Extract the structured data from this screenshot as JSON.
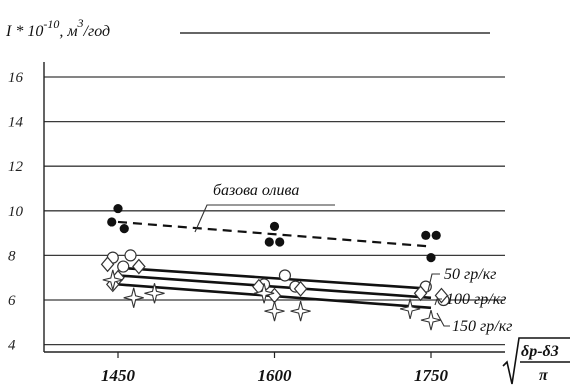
{
  "chart_data": {
    "type": "scatter",
    "ylabel": "I * 10^-10, м^3/год",
    "ylabel_parts": {
      "base": "I * 10",
      "exp": "-10",
      "unit": ", м",
      "unit_exp": "3",
      "tail": "/год"
    },
    "xlabel_formula": {
      "numerator": "δp-δ3",
      "denominator": "π"
    },
    "x_ticks": [
      1450,
      1600,
      1750
    ],
    "y_ticks": [
      4,
      6,
      8,
      10,
      12,
      14,
      16
    ],
    "xlim": [
      1330,
      1820
    ],
    "ylim": [
      3.2,
      17.5
    ],
    "grid": "horizontal",
    "series": [
      {
        "name": "базова олива",
        "marker": "filled-circle",
        "line_style": "dashed",
        "fit_line": [
          [
            1450,
            9.5
          ],
          [
            1750,
            8.4
          ]
        ],
        "points": [
          [
            1450,
            10.1
          ],
          [
            1444,
            9.5
          ],
          [
            1456,
            9.2
          ],
          [
            1600,
            9.3
          ],
          [
            1595,
            8.6
          ],
          [
            1605,
            8.6
          ],
          [
            1745,
            8.9
          ],
          [
            1755,
            8.9
          ],
          [
            1750,
            7.9
          ]
        ]
      },
      {
        "name": "50 гр/кг",
        "marker": "open-circle",
        "line_style": "solid",
        "fit_line": [
          [
            1450,
            7.45
          ],
          [
            1750,
            6.5
          ]
        ],
        "points": [
          [
            1462,
            8.0
          ],
          [
            1445,
            7.9
          ],
          [
            1455,
            7.5
          ],
          [
            1610,
            7.1
          ],
          [
            1590,
            6.7
          ],
          [
            1620,
            6.6
          ],
          [
            1745,
            6.6
          ],
          [
            1762,
            6.0
          ]
        ]
      },
      {
        "name": "100 гр/кг",
        "marker": "open-diamond",
        "line_style": "solid",
        "fit_line": [
          [
            1450,
            7.1
          ],
          [
            1750,
            6.1
          ]
        ],
        "points": [
          [
            1440,
            7.6
          ],
          [
            1470,
            7.5
          ],
          [
            1450,
            7.0
          ],
          [
            1445,
            6.7
          ],
          [
            1585,
            6.6
          ],
          [
            1625,
            6.5
          ],
          [
            1600,
            6.2
          ],
          [
            1740,
            6.3
          ],
          [
            1760,
            6.2
          ]
        ]
      },
      {
        "name": "150 гр/кг",
        "marker": "open-star",
        "line_style": "solid",
        "fit_line": [
          [
            1450,
            6.7
          ],
          [
            1750,
            5.65
          ]
        ],
        "points": [
          [
            1445,
            6.9
          ],
          [
            1465,
            6.1
          ],
          [
            1485,
            6.3
          ],
          [
            1590,
            6.3
          ],
          [
            1600,
            5.5
          ],
          [
            1625,
            5.5
          ],
          [
            1730,
            5.6
          ],
          [
            1750,
            5.1
          ]
        ]
      }
    ]
  }
}
